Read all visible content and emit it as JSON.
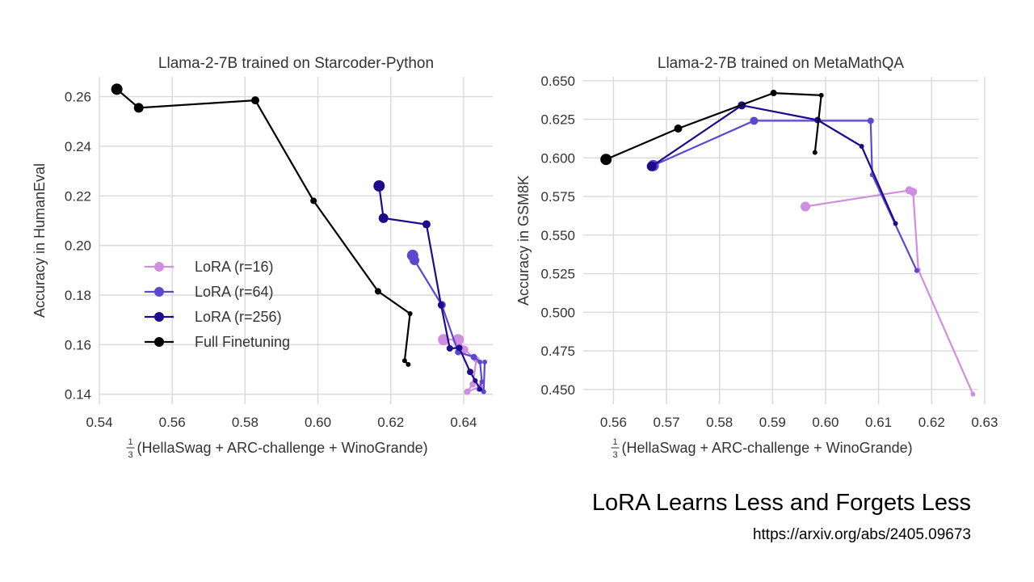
{
  "slide": {
    "title": "LoRA Learns Less and Forgets Less",
    "link": "https://arxiv.org/abs/2405.09673"
  },
  "colors": {
    "lora16": "#d08fde",
    "lora64": "#5c48cf",
    "lora256": "#200a8c",
    "full": "#000000",
    "grid": "#d9d9d9",
    "text": "#333333"
  },
  "legend_labels": [
    "LoRA (r=16)",
    "LoRA (r=64)",
    "LoRA (r=256)",
    "Full Finetuning"
  ],
  "chart_data": [
    {
      "type": "line",
      "title": "Llama-2-7B trained on Starcoder-Python",
      "xlabel_frac": "1/3",
      "xlabel_text": "(HellaSwag + ARC-challenge + WinoGrande)",
      "ylabel": "Accuracy in HumanEval",
      "xlim": [
        0.54,
        0.648
      ],
      "ylim": [
        0.136,
        0.268
      ],
      "xticks": [
        "0.54",
        "0.56",
        "0.58",
        "0.60",
        "0.62",
        "0.64"
      ],
      "yticks": [
        "0.14",
        "0.16",
        "0.18",
        "0.20",
        "0.22",
        "0.24",
        "0.26"
      ],
      "grid": true,
      "legend": "lower-left",
      "series": [
        {
          "name": "LoRA (r=16)",
          "color_key": "lora16",
          "points": [
            [
              0.6345,
              0.162
            ],
            [
              0.6385,
              0.162
            ],
            [
              0.6402,
              0.158
            ],
            [
              0.6435,
              0.154
            ],
            [
              0.6425,
              0.144
            ],
            [
              0.641,
              0.141
            ],
            [
              0.6445,
              0.143
            ],
            [
              0.6455,
              0.141
            ]
          ],
          "sizes": [
            7,
            7,
            5,
            4,
            4,
            4,
            4,
            3
          ]
        },
        {
          "name": "LoRA (r=64)",
          "color_key": "lora64",
          "points": [
            [
              0.626,
              0.196
            ],
            [
              0.6265,
              0.194
            ],
            [
              0.634,
              0.176
            ],
            [
              0.6385,
              0.157
            ],
            [
              0.6428,
              0.155
            ],
            [
              0.6445,
              0.153
            ],
            [
              0.645,
              0.145
            ],
            [
              0.6442,
              0.142
            ],
            [
              0.6455,
              0.141
            ],
            [
              0.6458,
              0.153
            ]
          ],
          "sizes": [
            7,
            6,
            5,
            4,
            4,
            3,
            3,
            3,
            3,
            3
          ]
        },
        {
          "name": "LoRA (r=256)",
          "color_key": "lora256",
          "points": [
            [
              0.6168,
              0.224
            ],
            [
              0.618,
              0.211
            ],
            [
              0.6298,
              0.2085
            ],
            [
              0.6338,
              0.176
            ],
            [
              0.6362,
              0.1585
            ],
            [
              0.6388,
              0.1587
            ],
            [
              0.6418,
              0.149
            ],
            [
              0.6432,
              0.1455
            ],
            [
              0.6445,
              0.142
            ]
          ],
          "sizes": [
            7,
            6,
            5,
            4,
            4,
            4,
            4,
            3,
            3
          ]
        },
        {
          "name": "Full Finetuning",
          "color_key": "full",
          "points": [
            [
              0.5448,
              0.263
            ],
            [
              0.5508,
              0.2555
            ],
            [
              0.5828,
              0.2585
            ],
            [
              0.5988,
              0.218
            ],
            [
              0.6165,
              0.1815
            ],
            [
              0.6253,
              0.1725
            ],
            [
              0.6238,
              0.1535
            ],
            [
              0.6248,
              0.152
            ]
          ],
          "sizes": [
            7,
            6,
            5,
            4,
            4,
            3,
            3,
            3
          ]
        }
      ]
    },
    {
      "type": "line",
      "title": "Llama-2-7B trained on MetaMathQA",
      "xlabel_frac": "1/3",
      "xlabel_text": "(HellaSwag + ARC-challenge + WinoGrande)",
      "ylabel": "Accuracy in GSM8K",
      "xlim": [
        0.5543,
        0.6288
      ],
      "ylim": [
        0.4405,
        0.6525
      ],
      "xticks": [
        "0.56",
        "0.57",
        "0.58",
        "0.59",
        "0.60",
        "0.61",
        "0.62",
        "0.63"
      ],
      "yticks": [
        "0.450",
        "0.475",
        "0.500",
        "0.525",
        "0.550",
        "0.575",
        "0.600",
        "0.625",
        "0.650"
      ],
      "grid": true,
      "series": [
        {
          "name": "LoRA (r=16)",
          "color_key": "lora16",
          "points": [
            [
              0.5962,
              0.5685
            ],
            [
              0.6158,
              0.579
            ],
            [
              0.6165,
              0.578
            ],
            [
              0.6175,
              0.5275
            ],
            [
              0.6278,
              0.447
            ]
          ],
          "sizes": [
            6,
            5,
            5,
            3,
            3
          ]
        },
        {
          "name": "LoRA (r=64)",
          "color_key": "lora64",
          "points": [
            [
              0.5675,
              0.595
            ],
            [
              0.5865,
              0.624
            ],
            [
              0.6085,
              0.624
            ],
            [
              0.6088,
              0.589
            ],
            [
              0.6172,
              0.527
            ]
          ],
          "sizes": [
            7,
            5,
            4,
            3,
            3
          ]
        },
        {
          "name": "LoRA (r=256)",
          "color_key": "lora256",
          "points": [
            [
              0.5672,
              0.5945
            ],
            [
              0.5842,
              0.634
            ],
            [
              0.5985,
              0.6245
            ],
            [
              0.6068,
              0.6075
            ],
            [
              0.6132,
              0.5575
            ]
          ],
          "sizes": [
            6,
            5,
            4,
            3,
            3
          ]
        },
        {
          "name": "Full Finetuning",
          "color_key": "full",
          "points": [
            [
              0.5586,
              0.599
            ],
            [
              0.5722,
              0.619
            ],
            [
              0.5902,
              0.642
            ],
            [
              0.5992,
              0.6405
            ],
            [
              0.598,
              0.6035
            ]
          ],
          "sizes": [
            7,
            5,
            4,
            3,
            3
          ]
        }
      ]
    }
  ]
}
